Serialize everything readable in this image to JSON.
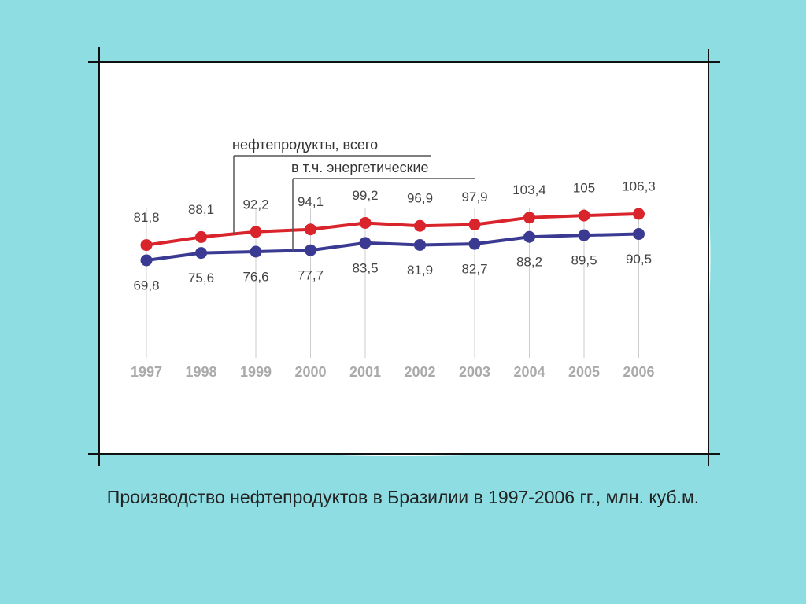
{
  "chart_data": {
    "type": "line",
    "title": "Производство нефтепродуктов в Бразилии в 1997-2006 гг., млн. куб.м.",
    "categories": [
      "1997",
      "1998",
      "1999",
      "2000",
      "2001",
      "2002",
      "2003",
      "2004",
      "2005",
      "2006"
    ],
    "series": [
      {
        "name": "нефтепродукты, всего",
        "color": "#d9242c",
        "values": [
          81.8,
          88.1,
          92.2,
          94.1,
          99.2,
          96.9,
          97.9,
          103.4,
          105,
          106.3
        ],
        "value_labels": [
          "81,8",
          "88,1",
          "92,2",
          "94,1",
          "99,2",
          "96,9",
          "97,9",
          "103,4",
          "105",
          "106,3"
        ]
      },
      {
        "name": "в т.ч. энергетические",
        "color": "#3b3a92",
        "values": [
          69.8,
          75.6,
          76.6,
          77.7,
          83.5,
          81.9,
          82.7,
          88.2,
          89.5,
          90.5
        ],
        "value_labels": [
          "69,8",
          "75,6",
          "76,6",
          "77,7",
          "83,5",
          "81,9",
          "82,7",
          "88,2",
          "89,5",
          "90,5"
        ]
      }
    ]
  }
}
